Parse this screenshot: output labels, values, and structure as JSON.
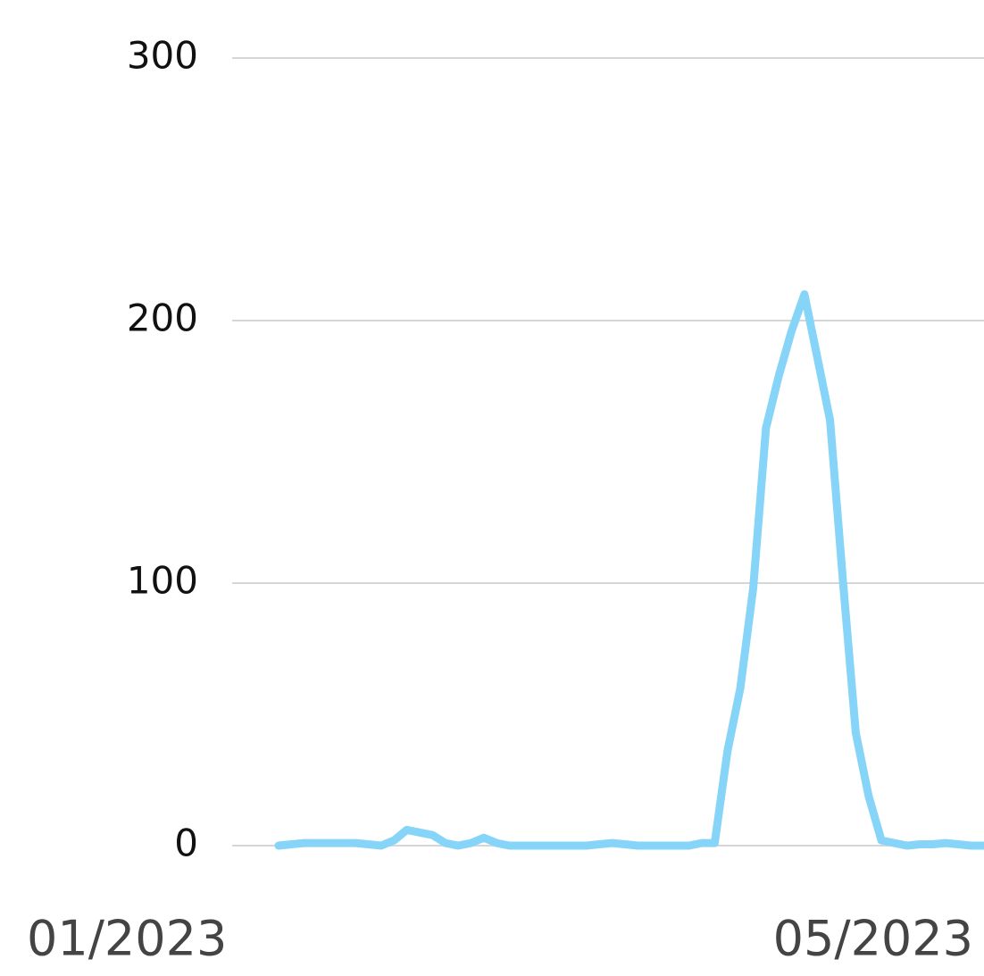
{
  "chart_data": {
    "type": "line",
    "categories": [
      "01/2023",
      null,
      null,
      null,
      null,
      null,
      null,
      null,
      null,
      null,
      null,
      null,
      null,
      null,
      null,
      null,
      null,
      null,
      null,
      null,
      null,
      null,
      null,
      null,
      null,
      null,
      null,
      null,
      null,
      null,
      null,
      null,
      null,
      null,
      null,
      null,
      null,
      null,
      null,
      null,
      null,
      null,
      null,
      null,
      null,
      null,
      null,
      null,
      null,
      null,
      null,
      null,
      null,
      null,
      null,
      "05/2023"
    ],
    "series": [
      {
        "color": "#87d4f9",
        "values": [
          0,
          0.5,
          1,
          1,
          1,
          1,
          1,
          0.5,
          0,
          2,
          6,
          5,
          4,
          1,
          0,
          1,
          3,
          1,
          0,
          0,
          0,
          0,
          0,
          0,
          0,
          0.5,
          1,
          0.5,
          0,
          0,
          0,
          0,
          0,
          1,
          1,
          36,
          60,
          98,
          159,
          179,
          196,
          210,
          186,
          162,
          101,
          43,
          19,
          2,
          1,
          0,
          0.5,
          0.5,
          1,
          0.5,
          0,
          0
        ]
      }
    ],
    "ylim": [
      0,
      300
    ],
    "yticks": [
      0,
      100,
      200,
      300
    ],
    "grid": true
  }
}
